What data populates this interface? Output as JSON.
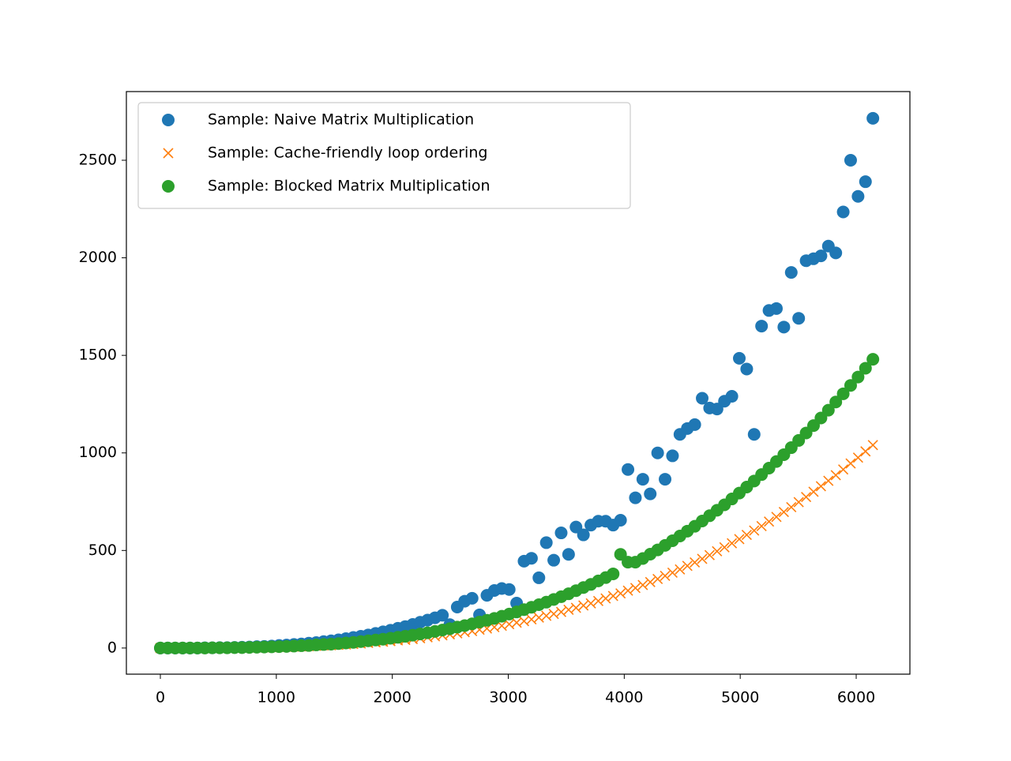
{
  "chart_data": {
    "type": "scatter",
    "x": [
      0,
      64,
      128,
      192,
      256,
      320,
      384,
      448,
      512,
      576,
      640,
      704,
      768,
      832,
      896,
      960,
      1024,
      1088,
      1152,
      1216,
      1280,
      1344,
      1408,
      1472,
      1536,
      1600,
      1664,
      1728,
      1792,
      1856,
      1920,
      1984,
      2048,
      2112,
      2176,
      2240,
      2304,
      2368,
      2432,
      2496,
      2560,
      2624,
      2688,
      2752,
      2816,
      2880,
      2944,
      3008,
      3072,
      3136,
      3200,
      3264,
      3328,
      3392,
      3456,
      3520,
      3584,
      3648,
      3712,
      3776,
      3840,
      3904,
      3968,
      4032,
      4096,
      4160,
      4224,
      4288,
      4352,
      4416,
      4480,
      4544,
      4608,
      4672,
      4736,
      4800,
      4864,
      4928,
      4992,
      5056,
      5120,
      5184,
      5248,
      5312,
      5376,
      5440,
      5504,
      5568,
      5632,
      5696,
      5760,
      5824,
      5888,
      5952,
      6016,
      6080,
      6144
    ],
    "series": [
      {
        "name": "Sample: Naive Matrix Multiplication",
        "color": "#1f77b4",
        "marker": "o",
        "values": [
          0,
          0,
          0,
          0,
          0,
          0,
          1,
          1,
          2,
          2,
          3,
          4,
          5,
          7,
          8,
          10,
          13,
          15,
          18,
          21,
          25,
          28,
          33,
          37,
          42,
          48,
          54,
          60,
          67,
          75,
          83,
          91,
          101,
          110,
          121,
          132,
          143,
          155,
          168,
          120,
          210,
          240,
          255,
          170,
          270,
          295,
          305,
          300,
          230,
          445,
          460,
          360,
          540,
          450,
          590,
          480,
          620,
          580,
          630,
          650,
          650,
          630,
          655,
          915,
          770,
          865,
          790,
          1000,
          865,
          985,
          1095,
          1125,
          1145,
          1280,
          1230,
          1225,
          1265,
          1290,
          1485,
          1430,
          1095,
          1650,
          1730,
          1740,
          1645,
          1925,
          1690,
          1985,
          1995,
          2010,
          2060,
          2025,
          2235,
          2500,
          2315,
          2390,
          2715
        ]
      },
      {
        "name": "Sample: Cache-friendly loop ordering",
        "color": "#ff7f0e",
        "marker": "x",
        "values": [
          0,
          0,
          0,
          0,
          0,
          0,
          0,
          0,
          1,
          1,
          1,
          2,
          2,
          3,
          3,
          4,
          5,
          6,
          7,
          8,
          9,
          11,
          13,
          14,
          16,
          18,
          21,
          23,
          26,
          29,
          32,
          35,
          39,
          42,
          46,
          50,
          55,
          60,
          65,
          70,
          75,
          81,
          87,
          94,
          100,
          107,
          114,
          122,
          130,
          138,
          147,
          156,
          165,
          175,
          185,
          196,
          206,
          218,
          229,
          241,
          254,
          267,
          280,
          294,
          308,
          323,
          338,
          354,
          370,
          386,
          403,
          421,
          439,
          457,
          476,
          496,
          516,
          537,
          558,
          580,
          602,
          625,
          648,
          672,
          697,
          722,
          748,
          774,
          801,
          829,
          857,
          886,
          915,
          946,
          976,
          1008,
          1040
        ]
      },
      {
        "name": "Sample: Blocked Matrix Multiplication",
        "color": "#2ca02c",
        "marker": "o",
        "values": [
          0,
          0,
          0,
          0,
          0,
          0,
          0,
          1,
          1,
          1,
          2,
          2,
          3,
          4,
          5,
          6,
          7,
          8,
          10,
          12,
          13,
          16,
          18,
          20,
          23,
          26,
          29,
          33,
          37,
          41,
          45,
          50,
          55,
          60,
          66,
          72,
          78,
          85,
          92,
          99,
          107,
          115,
          124,
          133,
          142,
          152,
          163,
          174,
          185,
          197,
          209,
          222,
          235,
          249,
          263,
          278,
          294,
          310,
          326,
          344,
          361,
          380,
          480,
          440,
          440,
          459,
          481,
          503,
          526,
          550,
          574,
          599,
          624,
          651,
          678,
          706,
          734,
          764,
          794,
          825,
          856,
          889,
          922,
          956,
          991,
          1027,
          1064,
          1102,
          1140,
          1179,
          1219,
          1261,
          1303,
          1346,
          1389,
          1434,
          1480
        ]
      }
    ],
    "xlim": [
      -293,
      6463
    ],
    "ylim": [
      -134,
      2852
    ],
    "xticks": [
      0,
      1000,
      2000,
      3000,
      4000,
      5000,
      6000
    ],
    "yticks": [
      0,
      500,
      1000,
      1500,
      2000,
      2500
    ],
    "legend": "upper left"
  }
}
